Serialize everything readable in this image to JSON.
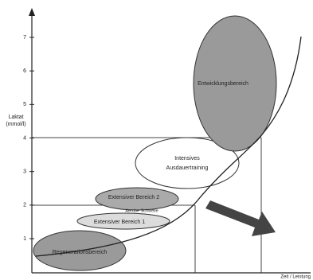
{
  "axes": {
    "y_label": [
      "Laktat",
      "(mmol/l)"
    ],
    "x_label": "Zeit / Leistung",
    "y_ticks": [
      "1",
      "2",
      "3",
      "4",
      "5",
      "6",
      "7"
    ]
  },
  "zones": [
    {
      "label": [
        "Regenerationsbereich"
      ]
    },
    {
      "label": [
        "Extensiver Bereich 1"
      ]
    },
    {
      "label": [
        "Extensiver Bereich 2"
      ],
      "note": "Aerobe Schwelle"
    },
    {
      "label": [
        "Intensives",
        "Ausdauertraining"
      ]
    },
    {
      "label": [
        "Entwicklungsbereich"
      ]
    }
  ]
}
